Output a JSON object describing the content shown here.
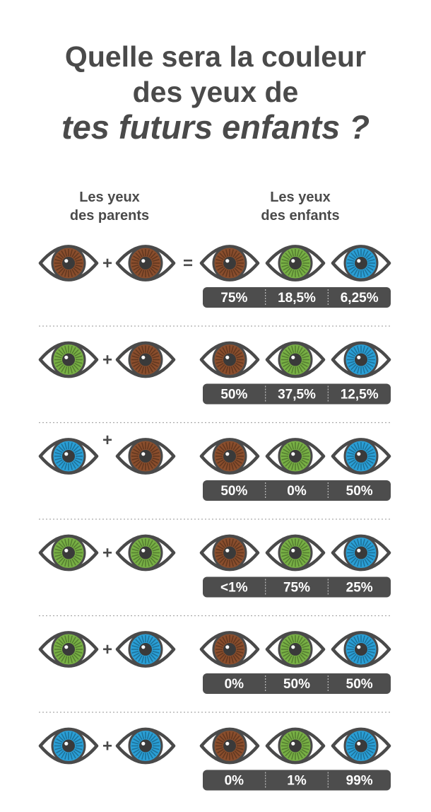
{
  "title": {
    "line1": "Quelle sera la couleur",
    "line2": "des yeux de",
    "line3": "tes futurs enfants ?"
  },
  "headers": {
    "parents_line1": "Les yeux",
    "parents_line2": "des parents",
    "children_line1": "Les yeux",
    "children_line2": "des enfants"
  },
  "symbols": {
    "plus": "+",
    "equals": "="
  },
  "colors": {
    "brown": "#8a4e2d",
    "green": "#78b045",
    "blue": "#2a9fd6",
    "outline": "#4a4a4a",
    "pill": "#4d4d4d",
    "pill_text": "#ffffff",
    "divider": "#aaaaaa"
  },
  "chart_data": {
    "type": "table",
    "columns": [
      "brown",
      "green",
      "blue"
    ],
    "rows": [
      {
        "parents": [
          "brown",
          "brown"
        ],
        "percentages": [
          "75%",
          "18,5%",
          "6,25%"
        ]
      },
      {
        "parents": [
          "green",
          "brown"
        ],
        "percentages": [
          "50%",
          "37,5%",
          "12,5%"
        ]
      },
      {
        "parents": [
          "blue",
          "brown"
        ],
        "percentages": [
          "50%",
          "0%",
          "50%"
        ]
      },
      {
        "parents": [
          "green",
          "green"
        ],
        "percentages": [
          "<1%",
          "75%",
          "25%"
        ]
      },
      {
        "parents": [
          "green",
          "blue"
        ],
        "percentages": [
          "0%",
          "50%",
          "50%"
        ]
      },
      {
        "parents": [
          "blue",
          "blue"
        ],
        "percentages": [
          "0%",
          "1%",
          "99%"
        ]
      }
    ]
  }
}
